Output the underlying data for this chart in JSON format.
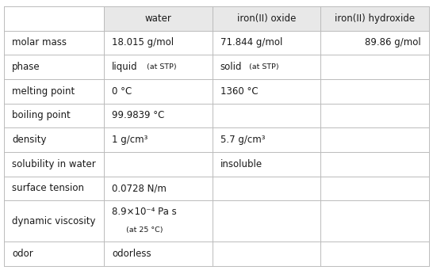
{
  "col_headers": [
    "",
    "water",
    "iron(II) oxide",
    "iron(II) hydroxide"
  ],
  "rows": [
    {
      "label": "molar mass",
      "water": "18.015 g/mol",
      "iron_oxide": "71.844 g/mol",
      "iron_hydroxide": "89.86 g/mol"
    },
    {
      "label": "phase",
      "water": "",
      "iron_oxide": "",
      "iron_hydroxide": ""
    },
    {
      "label": "melting point",
      "water": "0 °C",
      "iron_oxide": "1360 °C",
      "iron_hydroxide": ""
    },
    {
      "label": "boiling point",
      "water": "99.9839 °C",
      "iron_oxide": "",
      "iron_hydroxide": ""
    },
    {
      "label": "density",
      "water": "1 g/cm³",
      "iron_oxide": "5.7 g/cm³",
      "iron_hydroxide": ""
    },
    {
      "label": "solubility in water",
      "water": "",
      "iron_oxide": "insoluble",
      "iron_hydroxide": ""
    },
    {
      "label": "surface tension",
      "water": "0.0728 N/m",
      "iron_oxide": "",
      "iron_hydroxide": ""
    },
    {
      "label": "dynamic viscosity",
      "water": "",
      "iron_oxide": "",
      "iron_hydroxide": ""
    },
    {
      "label": "odor",
      "water": "odorless",
      "iron_oxide": "",
      "iron_hydroxide": ""
    }
  ],
  "header_bg": "#e8e8e8",
  "grid_color": "#bbbbbb",
  "text_color": "#1a1a1a",
  "bg_color": "#ffffff",
  "font_size": 8.5,
  "small_font_size": 6.8
}
